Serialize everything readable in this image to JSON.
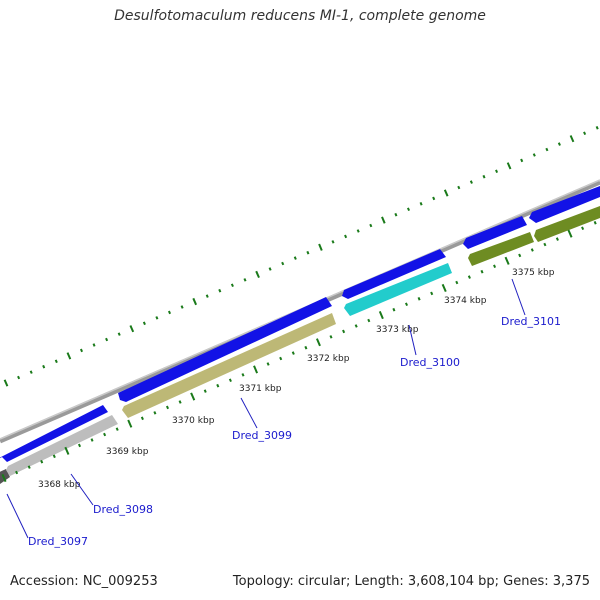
{
  "title": "Desulfotomaculum reducens MI-1, complete genome",
  "footer": {
    "accession": "Accession: NC_009253",
    "summary": "Topology: circular; Length: 3,608,104 bp; Genes: 3,375"
  },
  "ticks": [
    "3368 kbp",
    "3369 kbp",
    "3370 kbp",
    "3371 kbp",
    "3372 kbp",
    "3373 kbp",
    "3374 kbp",
    "3375 kbp"
  ],
  "genes": [
    "Dred_3097",
    "Dred_3098",
    "Dred_3099",
    "Dred_3100",
    "Dred_3101"
  ],
  "colors": {
    "backbone": "#8a8a8a",
    "forward": "#1010e0",
    "tick": "#1a7a1a",
    "leader": "#2020c0",
    "gene_label": "#1a1acd",
    "Dred_3097": "#555555",
    "Dred_3098": "#bdbdbd",
    "Dred_3099": "#bdb876",
    "Dred_3100": "#22cccc",
    "Dred_3101": "#6e8c22"
  }
}
